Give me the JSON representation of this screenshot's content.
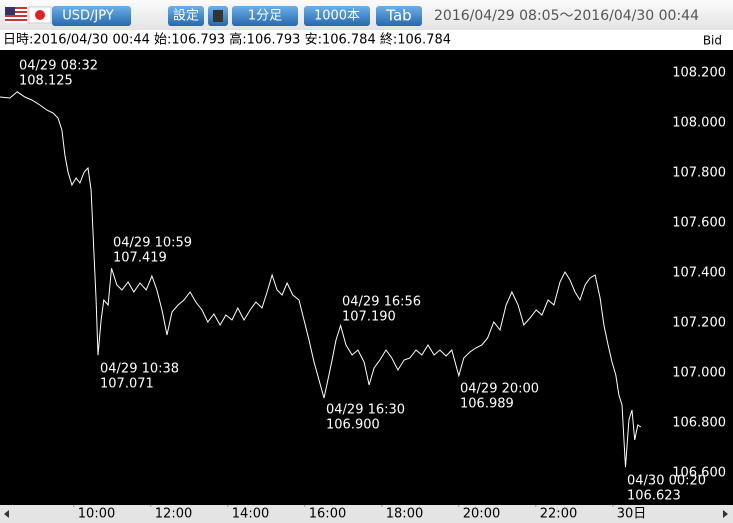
{
  "toolbar": {
    "pair": "USD/JPY",
    "buttons": [
      "設定",
      "1分足",
      "1000本",
      "Tab"
    ],
    "range": "2016/04/29 08:05～2016/04/30 00:44"
  },
  "info": "日時:2016/04/30 00:44 始:106.793 高:106.793 安:106.784 終:106.784",
  "chart_data": {
    "type": "line",
    "ylabel": "Bid",
    "color": "#ffffff",
    "x": [
      8.08,
      8.34,
      8.53,
      8.73,
      8.91,
      9.12,
      9.3,
      9.46,
      9.59,
      9.69,
      9.77,
      9.85,
      9.95,
      10.06,
      10.16,
      10.27,
      10.37,
      10.45,
      10.52,
      10.58,
      10.63,
      10.71,
      10.78,
      10.89,
      10.98,
      11.12,
      11.25,
      11.41,
      11.56,
      11.72,
      11.88,
      12.03,
      12.16,
      12.29,
      12.42,
      12.55,
      12.71,
      12.86,
      13.02,
      13.17,
      13.33,
      13.48,
      13.64,
      13.8,
      13.95,
      14.11,
      14.26,
      14.42,
      14.58,
      14.73,
      14.89,
      15.02,
      15.15,
      15.28,
      15.41,
      15.54,
      15.69,
      15.85,
      15.98,
      16.11,
      16.24,
      16.37,
      16.5,
      16.61,
      16.71,
      16.81,
      16.93,
      17.07,
      17.23,
      17.38,
      17.54,
      17.67,
      17.8,
      17.95,
      18.11,
      18.26,
      18.42,
      18.58,
      18.73,
      18.89,
      19.04,
      19.2,
      19.36,
      19.51,
      19.67,
      19.82,
      20.0,
      20.13,
      20.29,
      20.44,
      20.6,
      20.75,
      20.91,
      21.07,
      21.23,
      21.38,
      21.54,
      21.69,
      21.85,
      22.01,
      22.16,
      22.32,
      22.47,
      22.63,
      22.76,
      22.89,
      23.02,
      23.15,
      23.28,
      23.41,
      23.54,
      23.67,
      23.77,
      23.88,
      23.98,
      24.08,
      24.16,
      24.24,
      24.33,
      24.42,
      24.5,
      24.57,
      24.65,
      24.73
    ],
    "series": [
      {
        "name": "Bid",
        "color": "#ffffff",
        "values": [
          108.104,
          108.1,
          108.125,
          108.104,
          108.092,
          108.072,
          108.052,
          108.04,
          108.02,
          107.972,
          107.872,
          107.804,
          107.752,
          107.78,
          107.76,
          107.804,
          107.82,
          107.732,
          107.492,
          107.292,
          107.071,
          107.212,
          107.292,
          107.272,
          107.419,
          107.352,
          107.332,
          107.364,
          107.324,
          107.36,
          107.332,
          107.388,
          107.332,
          107.252,
          107.152,
          107.244,
          107.272,
          107.292,
          107.324,
          107.284,
          107.252,
          107.204,
          107.236,
          107.192,
          107.232,
          107.212,
          107.26,
          107.212,
          107.252,
          107.284,
          107.26,
          107.324,
          107.392,
          107.332,
          107.312,
          107.36,
          107.312,
          107.292,
          107.212,
          107.132,
          107.044,
          106.972,
          106.9,
          106.98,
          107.052,
          107.132,
          107.19,
          107.112,
          107.072,
          107.092,
          107.044,
          106.952,
          107.02,
          107.052,
          107.092,
          107.06,
          107.012,
          107.052,
          107.06,
          107.092,
          107.072,
          107.112,
          107.072,
          107.092,
          107.068,
          107.092,
          106.989,
          107.06,
          107.084,
          107.1,
          107.112,
          107.14,
          107.204,
          107.172,
          107.272,
          107.324,
          107.272,
          107.192,
          107.22,
          107.252,
          107.232,
          107.292,
          107.272,
          107.364,
          107.404,
          107.372,
          107.324,
          107.292,
          107.352,
          107.38,
          107.392,
          107.3,
          107.192,
          107.112,
          107.044,
          106.992,
          106.912,
          106.872,
          106.623,
          106.812,
          106.852,
          106.732,
          106.792,
          106.784
        ]
      }
    ],
    "xlim": [
      8.0833,
      24.7333
    ],
    "ylim": [
      106.472,
      108.292
    ],
    "xticks": [
      {
        "value": 10,
        "label": "10:00"
      },
      {
        "value": 12,
        "label": "12:00"
      },
      {
        "value": 14,
        "label": "14:00"
      },
      {
        "value": 16,
        "label": "16:00"
      },
      {
        "value": 18,
        "label": "18:00"
      },
      {
        "value": 20,
        "label": "20:00"
      },
      {
        "value": 22,
        "label": "22:00"
      },
      {
        "value": 24,
        "label": "30日"
      }
    ],
    "yticks": [
      {
        "value": 108.2,
        "label": "108.200"
      },
      {
        "value": 108.0,
        "label": "108.000"
      },
      {
        "value": 107.8,
        "label": "107.800"
      },
      {
        "value": 107.6,
        "label": "107.600"
      },
      {
        "value": 107.4,
        "label": "107.400"
      },
      {
        "value": 107.2,
        "label": "107.200"
      },
      {
        "value": 107.0,
        "label": "107.000"
      },
      {
        "value": 106.8,
        "label": "106.800"
      },
      {
        "value": 106.6,
        "label": "106.600"
      }
    ],
    "annotations": [
      {
        "time": "04/29 08:32",
        "price": "108.125"
      },
      {
        "time": "04/29 10:59",
        "price": "107.419"
      },
      {
        "time": "04/29 10:38",
        "price": "107.071"
      },
      {
        "time": "04/29 16:56",
        "price": "107.190"
      },
      {
        "time": "04/29 16:30",
        "price": "106.900"
      },
      {
        "time": "04/29 20:00",
        "price": "106.989"
      },
      {
        "time": "04/30 00:20",
        "price": "106.623"
      }
    ]
  }
}
